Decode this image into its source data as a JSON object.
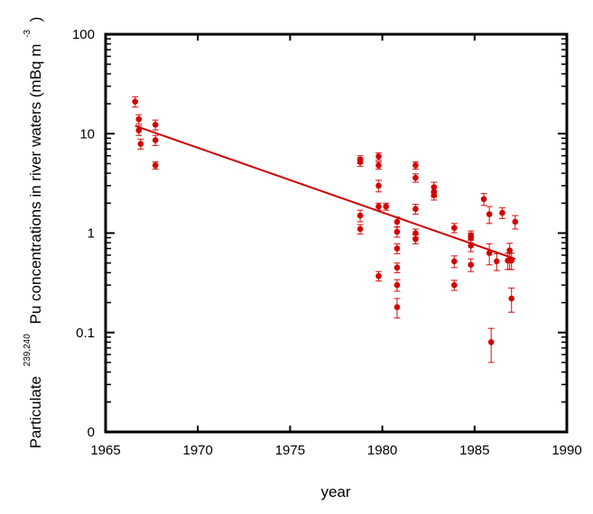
{
  "chart_data": {
    "type": "scatter",
    "title": "",
    "xlabel": "year",
    "ylabel": {
      "prefix": "Particulate",
      "superscript": "239,240",
      "main": "Pu concentrations in river waters (mBq m",
      "unit_superscript": "-3",
      "suffix": ")"
    },
    "xlim": [
      1965,
      1990
    ],
    "ylim": [
      0.01,
      100
    ],
    "yscale": "log",
    "x_ticks": [
      1965,
      1970,
      1975,
      1980,
      1985,
      1990
    ],
    "x_tick_labels": [
      "1965",
      "1970",
      "1975",
      "1980",
      "1985",
      "1990"
    ],
    "y_ticks": [
      0.01,
      0.1,
      1,
      10,
      100
    ],
    "y_tick_labels": [
      "0",
      "0.1",
      "1",
      "10",
      "100"
    ],
    "grid": false,
    "legend": null,
    "marker_color": "#d40000",
    "line_color": "#cc0000",
    "series": [
      {
        "name": "Particulate Pu",
        "points": [
          {
            "x": 1966.6,
            "y": 21,
            "err": 2.5
          },
          {
            "x": 1966.8,
            "y": 14,
            "err": 1.5
          },
          {
            "x": 1966.8,
            "y": 10.8,
            "err": 1.2
          },
          {
            "x": 1966.9,
            "y": 7.9,
            "err": 0.9
          },
          {
            "x": 1967.7,
            "y": 12.3,
            "err": 1.4
          },
          {
            "x": 1967.7,
            "y": 8.6,
            "err": 1.0
          },
          {
            "x": 1967.7,
            "y": 4.8,
            "err": 0.4
          },
          {
            "x": 1978.8,
            "y": 5.5,
            "err": 0.5
          },
          {
            "x": 1978.8,
            "y": 5.2,
            "err": 0.5
          },
          {
            "x": 1978.8,
            "y": 1.5,
            "err": 0.2
          },
          {
            "x": 1978.8,
            "y": 1.1,
            "err": 0.12
          },
          {
            "x": 1979.8,
            "y": 5.9,
            "err": 0.5
          },
          {
            "x": 1979.8,
            "y": 4.8,
            "err": 0.4
          },
          {
            "x": 1979.8,
            "y": 3.0,
            "err": 0.4
          },
          {
            "x": 1979.8,
            "y": 1.85,
            "err": 0.15
          },
          {
            "x": 1979.8,
            "y": 0.37,
            "err": 0.04
          },
          {
            "x": 1980.2,
            "y": 1.85,
            "err": 0.15
          },
          {
            "x": 1980.8,
            "y": 1.3,
            "err": 0.15
          },
          {
            "x": 1980.8,
            "y": 1.03,
            "err": 0.12
          },
          {
            "x": 1980.8,
            "y": 0.7,
            "err": 0.08
          },
          {
            "x": 1980.8,
            "y": 0.45,
            "err": 0.05
          },
          {
            "x": 1980.8,
            "y": 0.3,
            "err": 0.04
          },
          {
            "x": 1980.8,
            "y": 0.18,
            "err": 0.04
          },
          {
            "x": 1981.8,
            "y": 4.8,
            "err": 0.4
          },
          {
            "x": 1981.8,
            "y": 3.6,
            "err": 0.35
          },
          {
            "x": 1981.8,
            "y": 1.75,
            "err": 0.2
          },
          {
            "x": 1981.8,
            "y": 1.0,
            "err": 0.1
          },
          {
            "x": 1981.8,
            "y": 0.87,
            "err": 0.09
          },
          {
            "x": 1982.8,
            "y": 2.9,
            "err": 0.35
          },
          {
            "x": 1982.8,
            "y": 2.6,
            "err": 0.3
          },
          {
            "x": 1982.8,
            "y": 2.4,
            "err": 0.25
          },
          {
            "x": 1983.9,
            "y": 1.13,
            "err": 0.12
          },
          {
            "x": 1983.9,
            "y": 0.52,
            "err": 0.07
          },
          {
            "x": 1983.9,
            "y": 0.3,
            "err": 0.035
          },
          {
            "x": 1984.8,
            "y": 0.95,
            "err": 0.1
          },
          {
            "x": 1984.8,
            "y": 0.9,
            "err": 0.1
          },
          {
            "x": 1984.8,
            "y": 0.75,
            "err": 0.1
          },
          {
            "x": 1984.8,
            "y": 0.48,
            "err": 0.07
          },
          {
            "x": 1985.5,
            "y": 2.2,
            "err": 0.3
          },
          {
            "x": 1985.8,
            "y": 1.55,
            "err": 0.3
          },
          {
            "x": 1985.8,
            "y": 0.63,
            "err": 0.15
          },
          {
            "x": 1985.9,
            "y": 0.08,
            "err": 0.03
          },
          {
            "x": 1986.2,
            "y": 0.52,
            "err": 0.1
          },
          {
            "x": 1986.5,
            "y": 1.6,
            "err": 0.2
          },
          {
            "x": 1986.8,
            "y": 0.53,
            "err": 0.1
          },
          {
            "x": 1986.9,
            "y": 0.67,
            "err": 0.12
          },
          {
            "x": 1986.9,
            "y": 0.53,
            "err": 0.1
          },
          {
            "x": 1987.0,
            "y": 0.53,
            "err": 0.1
          },
          {
            "x": 1987.0,
            "y": 0.22,
            "err": 0.06
          },
          {
            "x": 1987.2,
            "y": 1.3,
            "err": 0.2
          }
        ]
      }
    ],
    "regression_line": {
      "x": [
        1966.6,
        1987.2
      ],
      "y": [
        12.0,
        0.55
      ]
    }
  }
}
